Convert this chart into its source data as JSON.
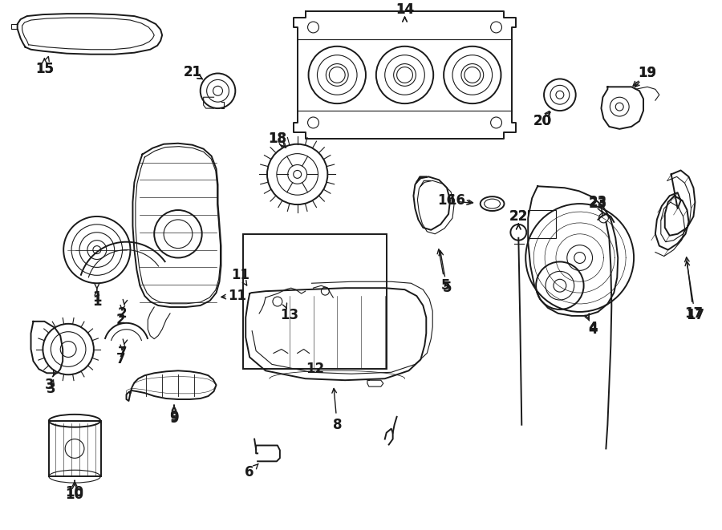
{
  "bg_color": "#ffffff",
  "line_color": "#1a1a1a",
  "fig_width": 9.0,
  "fig_height": 6.61,
  "dpi": 100,
  "label_fs": 12,
  "lw_main": 1.4,
  "lw_detail": 0.8
}
